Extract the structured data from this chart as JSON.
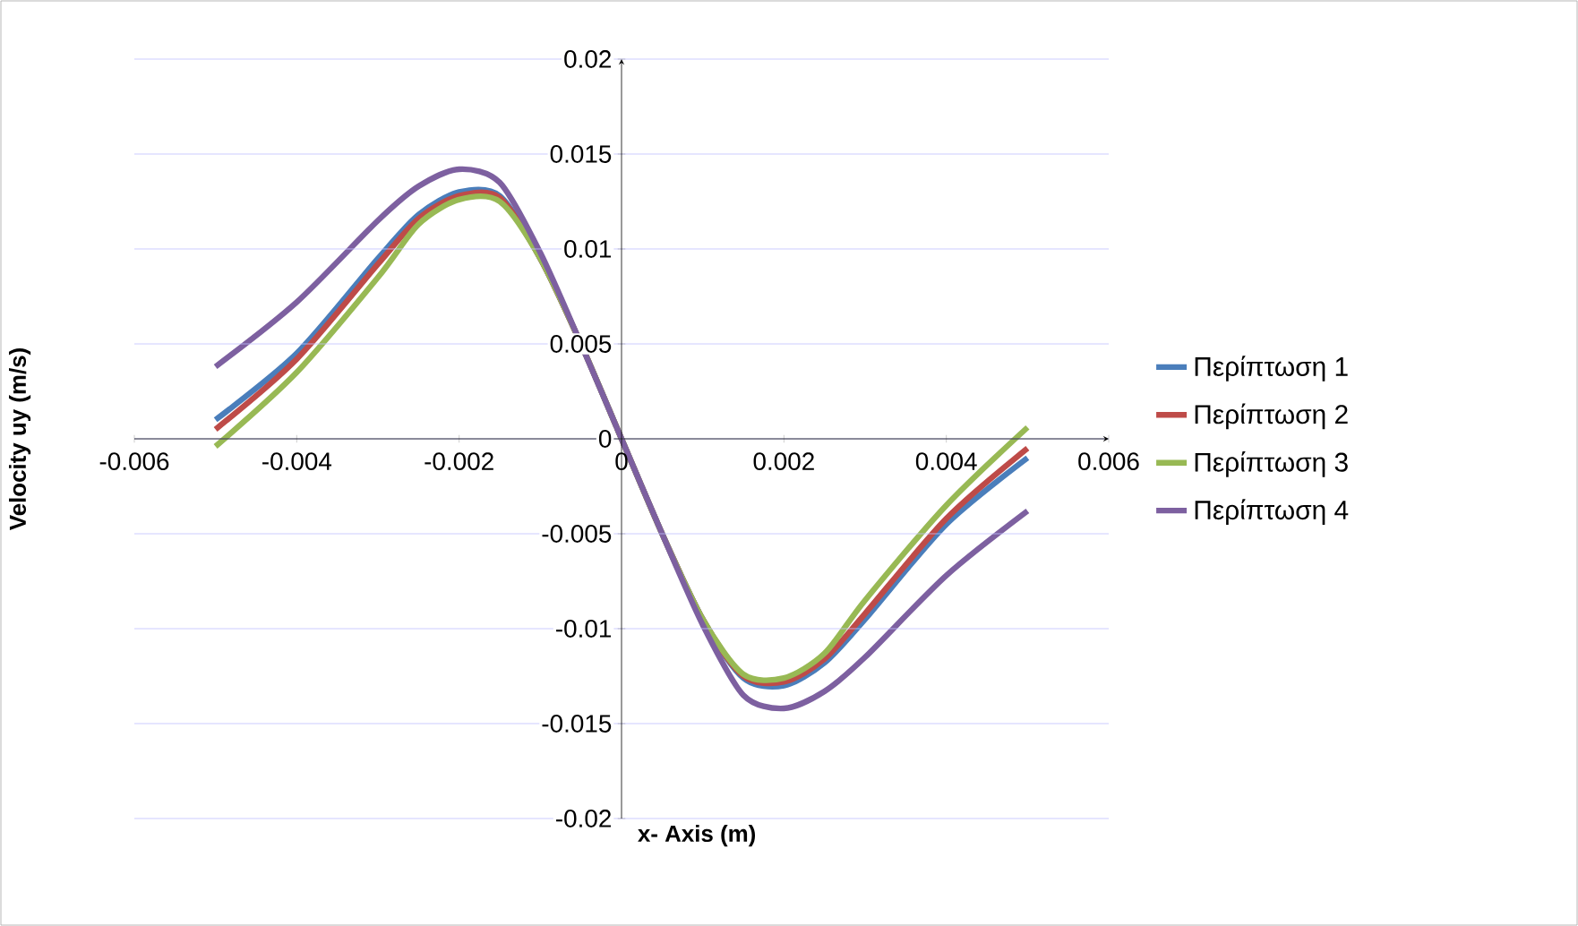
{
  "chart_data": {
    "type": "line",
    "xlabel": "x- Axis (m)",
    "ylabel": "Velocity uy (m/s)",
    "x": [
      -0.005,
      -0.004,
      -0.003,
      -0.0025,
      -0.002,
      -0.0015,
      -0.001,
      -0.0005,
      0,
      0.0005,
      0.001,
      0.0015,
      0.002,
      0.0025,
      0.003,
      0.004,
      0.005
    ],
    "series": [
      {
        "name": "Περίπτωση 1",
        "color": "#4a7ebb",
        "values": [
          0.001,
          0.0045,
          0.0095,
          0.0118,
          0.013,
          0.0128,
          0.0095,
          0.005,
          0,
          -0.005,
          -0.0095,
          -0.0126,
          -0.013,
          -0.0118,
          -0.0095,
          -0.0045,
          -0.001
        ]
      },
      {
        "name": "Περίπτωση 2",
        "color": "#be4b48",
        "values": [
          0.0005,
          0.0042,
          0.0092,
          0.0116,
          0.0128,
          0.0127,
          0.0095,
          0.005,
          0,
          -0.005,
          -0.0095,
          -0.0125,
          -0.0128,
          -0.0116,
          -0.0092,
          -0.0042,
          -0.0005
        ]
      },
      {
        "name": "Περίπτωση 3",
        "color": "#98b954",
        "values": [
          -0.0004,
          0.0035,
          0.0085,
          0.0113,
          0.0126,
          0.0125,
          0.0095,
          0.005,
          0,
          -0.005,
          -0.0095,
          -0.0124,
          -0.0126,
          -0.0113,
          -0.0085,
          -0.0035,
          0.0006
        ]
      },
      {
        "name": "Περίπτωση 4",
        "color": "#7d60a0",
        "values": [
          0.0038,
          0.0072,
          0.0115,
          0.0133,
          0.0142,
          0.0135,
          0.0098,
          0.005,
          0,
          -0.005,
          -0.0098,
          -0.0135,
          -0.0142,
          -0.0133,
          -0.0115,
          -0.0072,
          -0.0038
        ]
      }
    ],
    "xlim": [
      -0.006,
      0.006
    ],
    "xticks": [
      -0.006,
      -0.004,
      -0.002,
      0,
      0.002,
      0.004,
      0.006
    ],
    "ylim": [
      -0.02,
      0.02
    ],
    "yticks": [
      -0.02,
      -0.015,
      -0.01,
      -0.005,
      0,
      0.005,
      0.01,
      0.015,
      0.02
    ],
    "grid": "y",
    "legend": "right",
    "marker": "none",
    "line_style": "solid"
  }
}
